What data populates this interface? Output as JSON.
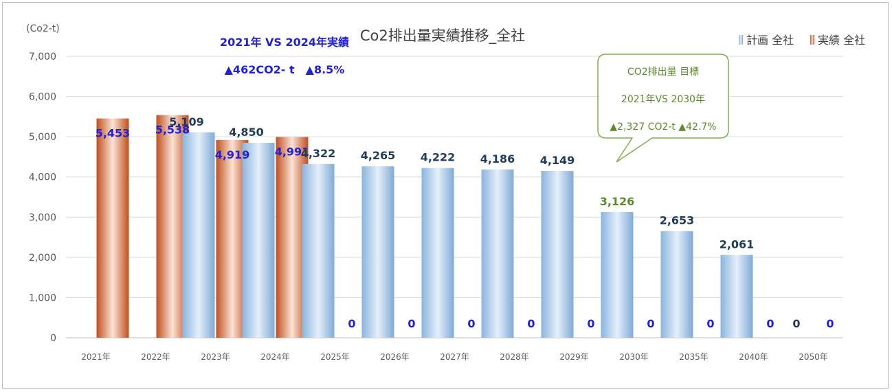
{
  "chart_data": {
    "type": "bar",
    "title": "Co2排出量実績推移_全社",
    "ylabel": "(Co2-t)",
    "ylim": [
      0,
      7000
    ],
    "yticks": [
      "0",
      "1,000",
      "2,000",
      "3,000",
      "4,000",
      "5,000",
      "6,000",
      "7,000"
    ],
    "categories": [
      "2021年",
      "2022年",
      "2023年",
      "2024年",
      "2025年",
      "2026年",
      "2027年",
      "2028年",
      "2029年",
      "2030年",
      "2035年",
      "2040年",
      "2050年"
    ],
    "series": [
      {
        "name": "計画 全社",
        "values": [
          null,
          null,
          5109,
          4850,
          4322,
          4265,
          4222,
          4186,
          4149,
          3126,
          2653,
          2061,
          0
        ],
        "labels": [
          "",
          "",
          "5,109",
          "4,850",
          "4,322",
          "4,265",
          "4,222",
          "4,186",
          "4,149",
          "3,126",
          "2,653",
          "2,061",
          "0"
        ]
      },
      {
        "name": "実績 全社",
        "values": [
          5453,
          5538,
          4919,
          4991,
          0,
          0,
          0,
          0,
          0,
          0,
          0,
          0,
          0
        ],
        "labels": [
          "5,453",
          "5,538",
          "4,919",
          "4,991",
          "0",
          "0",
          "0",
          "0",
          "0",
          "0",
          "0",
          "0",
          "0"
        ]
      }
    ],
    "grid": true,
    "legend": "top-right",
    "colors": {
      "plan": "#9dc3e6",
      "actual": "#c55a2b",
      "target_label": "#5a8a2a"
    },
    "annotations": {
      "compare_title": "2021年 VS 2024年実績",
      "compare_value": "▲462CO2- t　▲8.5%",
      "callout_line1": "CO2排出量 目標",
      "callout_line2": "2021年VS 2030年",
      "callout_line3": "▲2,327 CO2-t ▲42.7%"
    }
  }
}
